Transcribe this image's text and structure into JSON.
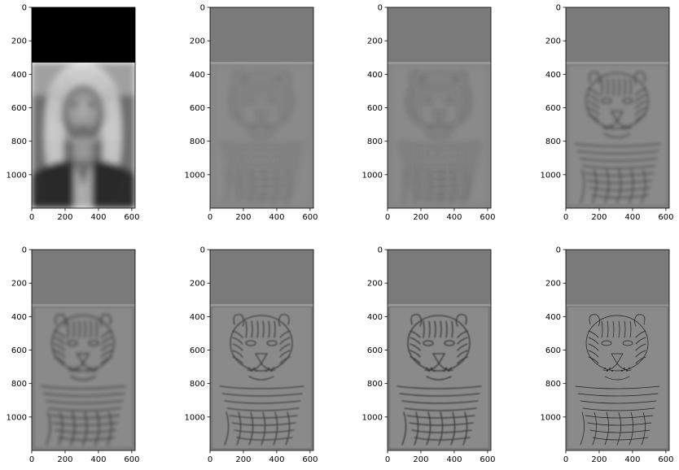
{
  "figure": {
    "grid": {
      "rows": 2,
      "cols": 4
    },
    "panels": [
      {
        "id": "panel-1",
        "content": "blurred portrait of a woman (low-pass image) with black band at top",
        "mode": "lowpass"
      },
      {
        "id": "panel-2",
        "content": "tiger face high-pass, very soft",
        "mode": "high",
        "level": 1
      },
      {
        "id": "panel-3",
        "content": "tiger face high-pass, soft",
        "mode": "high",
        "level": 2
      },
      {
        "id": "panel-4",
        "content": "tiger face high-pass, medium",
        "mode": "high",
        "level": 3
      },
      {
        "id": "panel-5",
        "content": "tiger face high-pass, medium-sharp",
        "mode": "high",
        "level": 4
      },
      {
        "id": "panel-6",
        "content": "tiger face high-pass, sharp",
        "mode": "high",
        "level": 5
      },
      {
        "id": "panel-7",
        "content": "tiger face high-pass, very sharp",
        "mode": "high",
        "level": 6
      },
      {
        "id": "panel-8",
        "content": "tiger face high-pass, finest edges only",
        "mode": "high",
        "level": 7
      }
    ],
    "x_ticks": [
      "0",
      "200",
      "400",
      "600"
    ],
    "y_ticks": [
      "0",
      "200",
      "400",
      "600",
      "800",
      "1000"
    ],
    "x_tick_values": [
      0,
      200,
      400,
      600
    ],
    "y_tick_values": [
      0,
      200,
      400,
      600,
      800,
      1000
    ],
    "image_extent": {
      "width": 620,
      "height": 1200
    }
  },
  "colors": {
    "band_dark": "#000000",
    "band_gray": "#7a7a7a",
    "panel_gray": "#8a8a8a",
    "edge": "#1a1a1a"
  }
}
